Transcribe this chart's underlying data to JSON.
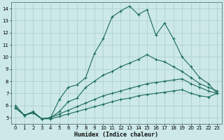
{
  "xlabel": "Humidex (Indice chaleur)",
  "bg_color": "#cce8e8",
  "line_color": "#1a6b5a",
  "grid_color": "#aacccc",
  "xlim": [
    -0.5,
    23.5
  ],
  "ylim": [
    4.5,
    14.5
  ],
  "xticks": [
    0,
    1,
    2,
    3,
    4,
    5,
    6,
    7,
    8,
    9,
    10,
    11,
    12,
    13,
    14,
    15,
    16,
    17,
    18,
    19,
    20,
    21,
    22,
    23
  ],
  "yticks": [
    5,
    6,
    7,
    8,
    9,
    10,
    11,
    12,
    13,
    14
  ],
  "line1_x": [
    0,
    1,
    2,
    3,
    4,
    5,
    6,
    7,
    8,
    9,
    10,
    11,
    12,
    13,
    14,
    15,
    16,
    17,
    18,
    19,
    20,
    21,
    22,
    23
  ],
  "line1_y": [
    6.0,
    5.2,
    5.5,
    4.9,
    5.0,
    6.5,
    7.5,
    7.7,
    8.3,
    10.3,
    11.5,
    13.3,
    13.8,
    14.2,
    13.5,
    13.9,
    11.8,
    12.8,
    11.5,
    10.0,
    9.2,
    8.3,
    7.8,
    7.0
  ],
  "line2_x": [
    0,
    1,
    2,
    3,
    4,
    5,
    6,
    7,
    8,
    9,
    10,
    11,
    12,
    13,
    14,
    15,
    16,
    17,
    18,
    19,
    20,
    21,
    22,
    23
  ],
  "line2_y": [
    5.8,
    5.2,
    5.4,
    4.9,
    5.0,
    5.5,
    6.3,
    6.6,
    7.5,
    8.0,
    8.5,
    8.8,
    9.2,
    9.5,
    9.8,
    10.2,
    9.8,
    9.6,
    9.2,
    8.8,
    8.3,
    7.8,
    7.5,
    7.2
  ],
  "line3_x": [
    0,
    1,
    2,
    3,
    4,
    5,
    6,
    7,
    8,
    9,
    10,
    11,
    12,
    13,
    14,
    15,
    16,
    17,
    18,
    19,
    20,
    21,
    22,
    23
  ],
  "line3_y": [
    5.8,
    5.2,
    5.4,
    4.9,
    5.0,
    5.3,
    5.6,
    5.9,
    6.2,
    6.5,
    6.8,
    7.0,
    7.2,
    7.4,
    7.6,
    7.8,
    7.9,
    8.0,
    8.1,
    8.2,
    7.8,
    7.5,
    7.2,
    7.0
  ],
  "line4_x": [
    0,
    1,
    2,
    3,
    4,
    5,
    6,
    7,
    8,
    9,
    10,
    11,
    12,
    13,
    14,
    15,
    16,
    17,
    18,
    19,
    20,
    21,
    22,
    23
  ],
  "line4_y": [
    5.8,
    5.2,
    5.4,
    4.9,
    4.9,
    5.1,
    5.3,
    5.5,
    5.7,
    5.9,
    6.1,
    6.3,
    6.5,
    6.6,
    6.8,
    6.9,
    7.0,
    7.1,
    7.2,
    7.3,
    7.0,
    6.8,
    6.7,
    7.0
  ]
}
